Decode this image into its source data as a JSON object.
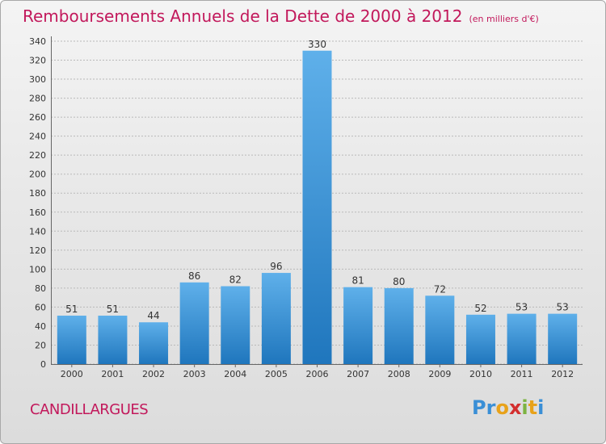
{
  "header": {
    "title": "Remboursements Annuels de la Dette de 2000 à 2012",
    "unit": "(en milliers d'€)"
  },
  "footer": {
    "commune": "CANDILLARGUES",
    "logo_letters": [
      "P",
      "r",
      "o",
      "x",
      "i",
      "t",
      "i"
    ],
    "logo_colors": [
      "#3a8fd6",
      "#3a8fd6",
      "#e8a21a",
      "#d32f2f",
      "#7cb342",
      "#e8a21a",
      "#3a8fd6"
    ]
  },
  "colors": {
    "title": "#c2185b",
    "bar_light": "#5fb0ea",
    "bar_dark": "#1f76bd",
    "grid": "#b9b9b9"
  },
  "chart_data": {
    "type": "bar",
    "title": "Remboursements Annuels de la Dette de 2000 à 2012",
    "subtitle": "(en milliers d'€)",
    "xlabel": "",
    "ylabel": "",
    "categories": [
      "2000",
      "2001",
      "2002",
      "2003",
      "2004",
      "2005",
      "2006",
      "2007",
      "2008",
      "2009",
      "2010",
      "2011",
      "2012"
    ],
    "values": [
      51,
      51,
      44,
      86,
      82,
      96,
      330,
      81,
      80,
      72,
      52,
      53,
      53
    ],
    "data_labels": [
      "51",
      "51",
      "44",
      "86",
      "82",
      "96",
      "330",
      "81",
      "80",
      "72",
      "52",
      "53",
      "53"
    ],
    "ylim": [
      0,
      340
    ],
    "yticks": [
      0,
      20,
      40,
      60,
      80,
      100,
      120,
      140,
      160,
      180,
      200,
      220,
      240,
      260,
      280,
      300,
      320,
      340
    ],
    "grid": true
  }
}
